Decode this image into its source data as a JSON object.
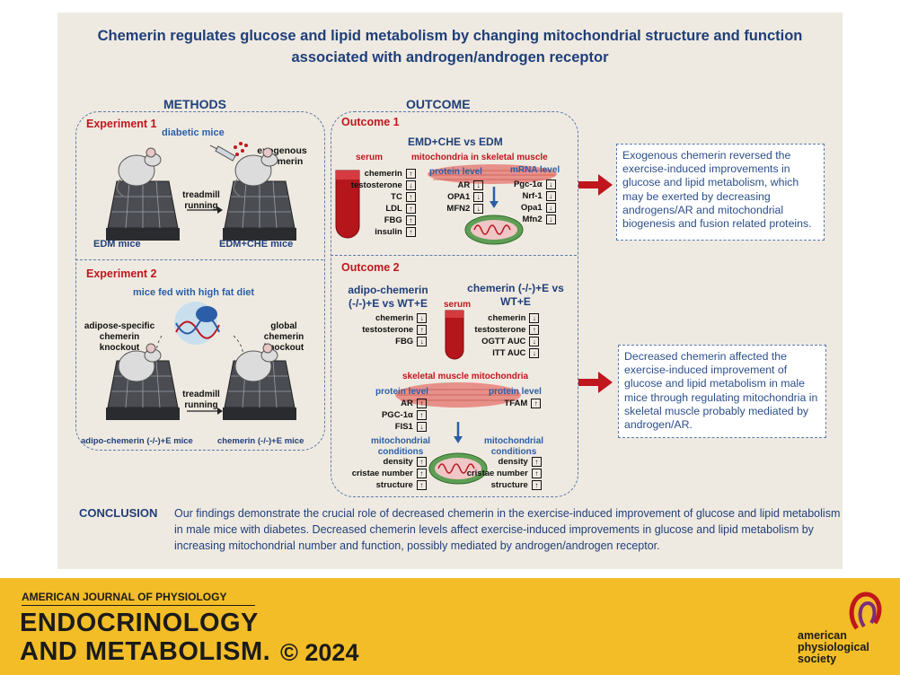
{
  "title": "Chemerin regulates glucose and lipid metabolism by changing mitochondrial structure and function associated with androgen/androgen receptor",
  "methods": {
    "header": "METHODS",
    "exp1": {
      "label": "Experiment 1",
      "subtitle": "diabetic mice",
      "exogenous": "exogenous chemerin",
      "treadmill": "treadmill running",
      "left_mice": "EDM mice",
      "right_mice": "EDM+CHE mice"
    },
    "exp2": {
      "label": "Experiment 2",
      "subtitle": "mice fed with high fat diet",
      "adipose_ko": "adipose-specific chemerin knockout",
      "global_ko": "global chemerin knockout",
      "treadmill": "treadmill running",
      "left_mice": "adipo-chemerin (-/-)+E mice",
      "right_mice": "chemerin (-/-)+E mice"
    }
  },
  "outcome": {
    "header": "OUTCOME",
    "o1": {
      "label": "Outcome 1",
      "compare": "EMD+CHE vs EDM",
      "serum": "serum",
      "mito": "mitochondria in skeletal muscle",
      "protein_level": "protein level",
      "mrna_level": "mRNA level",
      "serum_rows": [
        {
          "name": "chemerin",
          "dir": "↑"
        },
        {
          "name": "testosterone",
          "dir": "↓"
        },
        {
          "name": "TC",
          "dir": "↑"
        },
        {
          "name": "LDL",
          "dir": "↑"
        },
        {
          "name": "FBG",
          "dir": "↑"
        },
        {
          "name": "insulin",
          "dir": "↑"
        }
      ],
      "protein_rows": [
        {
          "name": "AR",
          "dir": "↓"
        },
        {
          "name": "OPA1",
          "dir": "↓"
        },
        {
          "name": "MFN2",
          "dir": "↓"
        }
      ],
      "mrna_rows": [
        {
          "name": "Pgc-1α",
          "dir": "↓"
        },
        {
          "name": "Nrf-1",
          "dir": "↓"
        },
        {
          "name": "Opa1",
          "dir": "↓"
        },
        {
          "name": "Mfn2",
          "dir": "↓"
        }
      ]
    },
    "o2": {
      "label": "Outcome 2",
      "left_compare": "adipo-chemerin (-/-)+E vs WT+E",
      "right_compare": "chemerin (-/-)+E vs WT+E",
      "serum": "serum",
      "skm": "skeletal muscle mitochondria",
      "protein_level_left": "protein level",
      "protein_level_right": "protein level",
      "mito_cond_left": "mitochondrial conditions",
      "mito_cond_right": "mitochondrial conditions",
      "left_serum": [
        {
          "name": "chemerin",
          "dir": "↓"
        },
        {
          "name": "testosterone",
          "dir": "↑"
        },
        {
          "name": "FBG",
          "dir": "↓"
        }
      ],
      "right_serum": [
        {
          "name": "chemerin",
          "dir": "↓"
        },
        {
          "name": "testosterone",
          "dir": "↑"
        },
        {
          "name": "OGTT AUC",
          "dir": "↓"
        },
        {
          "name": "ITT AUC",
          "dir": "↓"
        }
      ],
      "left_protein": [
        {
          "name": "AR",
          "dir": "↑"
        },
        {
          "name": "PGC-1α",
          "dir": "↑"
        },
        {
          "name": "FIS1",
          "dir": "↓"
        }
      ],
      "right_protein": [
        {
          "name": "TFAM",
          "dir": "↑"
        }
      ],
      "left_cond": [
        {
          "name": "density",
          "dir": "↑"
        },
        {
          "name": "cristae number",
          "dir": "↑"
        },
        {
          "name": "structure",
          "dir": "↑"
        }
      ],
      "right_cond": [
        {
          "name": "density",
          "dir": "↑"
        },
        {
          "name": "cristae number",
          "dir": "↑"
        },
        {
          "name": "structure",
          "dir": "↑"
        }
      ]
    }
  },
  "summary1": "Exogenous chemerin reversed the exercise-induced improvements in glucose and lipid metabolism, which may be exerted by decreasing androgens/AR and mitochondrial biogenesis and fusion related proteins.",
  "summary2": "Decreased chemerin affected the exercise-induced improvement of glucose and lipid metabolism in male mice through regulating mitochondria in skeletal muscle probably mediated by androgen/AR.",
  "conclusion": {
    "label": "CONCLUSION",
    "text": "Our findings demonstrate the crucial role of decreased chemerin in the exercise-induced improvement of glucose and lipid metabolism in male mice with diabetes. Decreased chemerin levels affect exercise-induced improvements in glucose and lipid metabolism by increasing mitochondrial number and function, possibly mediated by androgen/androgen receptor."
  },
  "footer": {
    "journal_small": "AMERICAN JOURNAL OF PHYSIOLOGY",
    "journal_big1": "ENDOCRINOLOGY",
    "journal_big2": "AND METABOLISM.",
    "copyright": "© 2024",
    "society1": "american",
    "society2": "physiological",
    "society3": "society"
  },
  "colors": {
    "panel": "#efeae1",
    "navy": "#1f3f7a",
    "red": "#c0161e",
    "gold": "#f2bd27"
  }
}
